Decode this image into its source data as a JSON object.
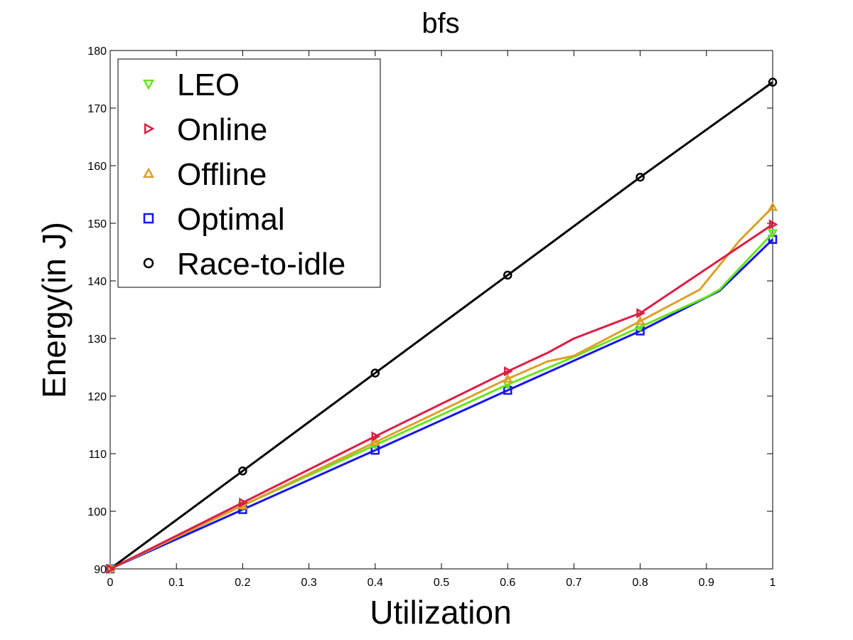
{
  "chart_data": {
    "type": "line",
    "title": "bfs",
    "xlabel": "Utilization",
    "ylabel": "Energy(in J)",
    "xlim": [
      0,
      1
    ],
    "ylim": [
      90,
      180
    ],
    "xticks": [
      "0",
      "0.1",
      "0.2",
      "0.3",
      "0.4",
      "0.5",
      "0.6",
      "0.7",
      "0.8",
      "0.9",
      "1"
    ],
    "yticks": [
      "90",
      "100",
      "110",
      "120",
      "130",
      "140",
      "150",
      "160",
      "170",
      "180"
    ],
    "grid": false,
    "legend_position": "top-left",
    "series": [
      {
        "name": "LEO",
        "color": "#66e61a",
        "marker": "triangle-down",
        "x": [
          0,
          0.2,
          0.4,
          0.6,
          0.7,
          0.8,
          0.9,
          0.92,
          1.0
        ],
        "y": [
          90,
          101.0,
          111.5,
          122.0,
          126.8,
          132.0,
          137.2,
          138.5,
          148.3
        ]
      },
      {
        "name": "Online",
        "color": "#dc1e46",
        "marker": "triangle-right",
        "x": [
          0,
          0.2,
          0.4,
          0.6,
          0.66,
          0.7,
          0.75,
          0.8,
          1.0
        ],
        "y": [
          90,
          101.5,
          113.0,
          124.3,
          127.5,
          130.0,
          132.2,
          134.4,
          149.8
        ]
      },
      {
        "name": "Offline",
        "color": "#dca028",
        "marker": "triangle-up",
        "x": [
          0,
          0.2,
          0.4,
          0.6,
          0.66,
          0.7,
          0.8,
          0.89,
          0.95,
          1.0
        ],
        "y": [
          90,
          101.0,
          112.0,
          123.0,
          126.0,
          127.0,
          133.0,
          138.5,
          147.0,
          152.8
        ]
      },
      {
        "name": "Optimal",
        "color": "#1414f0",
        "marker": "square",
        "x": [
          0,
          0.2,
          0.4,
          0.6,
          0.8,
          0.92,
          1.0
        ],
        "y": [
          90,
          100.3,
          110.6,
          121.0,
          131.3,
          138.3,
          147.2
        ]
      },
      {
        "name": "Race-to-idle",
        "color": "#000000",
        "marker": "circle",
        "x": [
          0,
          0.2,
          0.4,
          0.6,
          0.8,
          1.0
        ],
        "y": [
          90,
          107.0,
          124.0,
          141.0,
          158.0,
          174.5
        ]
      }
    ]
  }
}
